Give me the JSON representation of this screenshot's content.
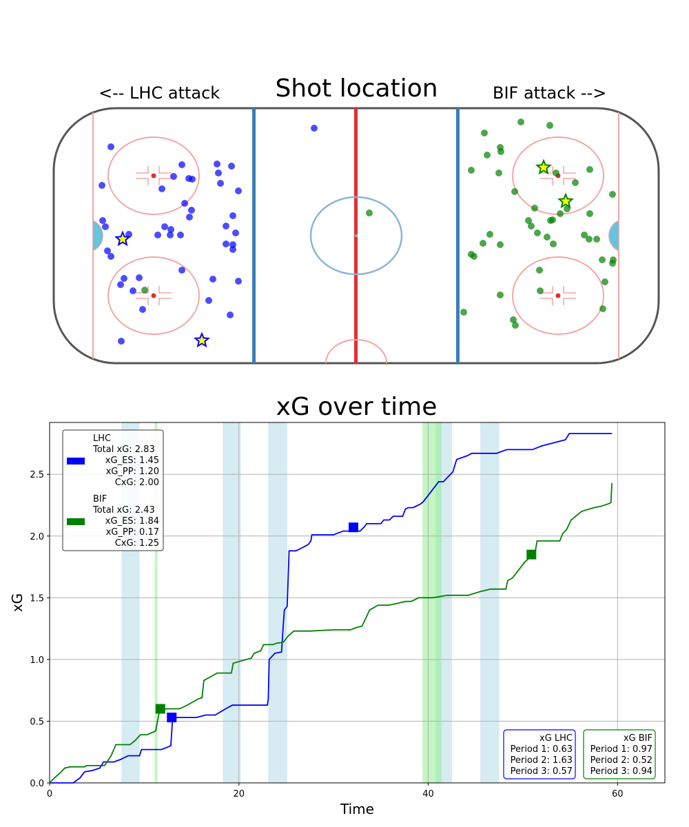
{
  "rink_panel": {
    "title": "Shot location",
    "left_label": "<-- LHC attack",
    "right_label": "BIF attack -->",
    "shots_lhc": [
      [
        161,
        213
      ],
      [
        148,
        269
      ],
      [
        264,
        239
      ],
      [
        252,
        256
      ],
      [
        274,
        259
      ],
      [
        279,
        260
      ],
      [
        235,
        274
      ],
      [
        315,
        238
      ],
      [
        336,
        241
      ],
      [
        317,
        251
      ],
      [
        320,
        266
      ],
      [
        346,
        277
      ],
      [
        268,
        295
      ],
      [
        278,
        305
      ],
      [
        275,
        315
      ],
      [
        338,
        313
      ],
      [
        328,
        328
      ],
      [
        149,
        320
      ],
      [
        153,
        329
      ],
      [
        239,
        329
      ],
      [
        248,
        333
      ],
      [
        229,
        341
      ],
      [
        247,
        341
      ],
      [
        262,
        341
      ],
      [
        342,
        338
      ],
      [
        328,
        354
      ],
      [
        338,
        355
      ],
      [
        338,
        362
      ],
      [
        156,
        364
      ],
      [
        161,
        372
      ],
      [
        264,
        392
      ],
      [
        180,
        404
      ],
      [
        202,
        403
      ],
      [
        175,
        413
      ],
      [
        309,
        405
      ],
      [
        346,
        408
      ],
      [
        193,
        422
      ],
      [
        303,
        436
      ],
      [
        207,
        449
      ],
      [
        334,
        457
      ],
      [
        176,
        495
      ],
      [
        456,
        186
      ],
      [
        187,
        340
      ]
    ],
    "shots_lhc_goals": [
      [
        178,
        347
      ],
      [
        293,
        494
      ]
    ],
    "shots_bif": [
      [
        756,
        177
      ],
      [
        798,
        182
      ],
      [
        703,
        193
      ],
      [
        726,
        214
      ],
      [
        727,
        220
      ],
      [
        707,
        225
      ],
      [
        684,
        247
      ],
      [
        724,
        251
      ],
      [
        856,
        246
      ],
      [
        807,
        251
      ],
      [
        835,
        265
      ],
      [
        747,
        278
      ],
      [
        889,
        282
      ],
      [
        776,
        302
      ],
      [
        823,
        303
      ],
      [
        802,
        319
      ],
      [
        856,
        310
      ],
      [
        813,
        310
      ],
      [
        767,
        320
      ],
      [
        771,
        328
      ],
      [
        799,
        320
      ],
      [
        780,
        338
      ],
      [
        711,
        340
      ],
      [
        794,
        344
      ],
      [
        848,
        341
      ],
      [
        701,
        353
      ],
      [
        726,
        355
      ],
      [
        803,
        354
      ],
      [
        855,
        347
      ],
      [
        866,
        347
      ],
      [
        684,
        369
      ],
      [
        688,
        372
      ],
      [
        874,
        377
      ],
      [
        890,
        377
      ],
      [
        889,
        382
      ],
      [
        783,
        392
      ],
      [
        878,
        409
      ],
      [
        784,
        422
      ],
      [
        726,
        428
      ],
      [
        875,
        448
      ],
      [
        673,
        453
      ],
      [
        745,
        464
      ],
      [
        748,
        472
      ],
      [
        210,
        421
      ],
      [
        536,
        309
      ]
    ],
    "shots_bif_goals": [
      [
        789,
        243
      ],
      [
        821,
        292
      ]
    ]
  },
  "chart_data": {
    "type": "line",
    "title": "xG over time",
    "xlabel": "Time",
    "ylabel": "xG",
    "xlim": [
      0,
      65
    ],
    "ylim": [
      0,
      2.92
    ],
    "x_ticks": [
      0,
      20,
      40,
      60
    ],
    "y_ticks": [
      0.0,
      0.5,
      1.0,
      1.5,
      2.0,
      2.5
    ],
    "grid": true,
    "series": [
      {
        "name": "LHC",
        "color": "#0000ff",
        "points": [
          [
            0,
            0
          ],
          [
            2.5,
            0
          ],
          [
            3.2,
            0.04
          ],
          [
            3.7,
            0.09
          ],
          [
            4.5,
            0.1
          ],
          [
            5.3,
            0.12
          ],
          [
            5.7,
            0.17
          ],
          [
            6.8,
            0.17
          ],
          [
            7.5,
            0.19
          ],
          [
            8.3,
            0.22
          ],
          [
            9.5,
            0.22
          ],
          [
            9.7,
            0.27
          ],
          [
            11.8,
            0.27
          ],
          [
            12.8,
            0.3
          ],
          [
            13,
            0.53
          ],
          [
            15.5,
            0.53
          ],
          [
            16.5,
            0.55
          ],
          [
            17.5,
            0.55
          ],
          [
            18.6,
            0.6
          ],
          [
            19.3,
            0.63
          ],
          [
            23,
            0.63
          ],
          [
            23.1,
            0.68
          ],
          [
            23.2,
            1.0
          ],
          [
            23.8,
            1.05
          ],
          [
            24.5,
            1.06
          ],
          [
            24.7,
            1.29
          ],
          [
            24.8,
            1.4
          ],
          [
            25.1,
            1.43
          ],
          [
            25.3,
            1.88
          ],
          [
            26,
            1.88
          ],
          [
            26.3,
            1.89
          ],
          [
            26.8,
            1.91
          ],
          [
            27.3,
            1.93
          ],
          [
            27.6,
            1.96
          ],
          [
            27.7,
            2.01
          ],
          [
            30,
            2.01
          ],
          [
            31,
            2.04
          ],
          [
            32.8,
            2.04
          ],
          [
            33.2,
            2.07
          ],
          [
            33.5,
            2.1
          ],
          [
            35,
            2.1
          ],
          [
            35.3,
            2.13
          ],
          [
            35.9,
            2.13
          ],
          [
            36.3,
            2.16
          ],
          [
            37.3,
            2.16
          ],
          [
            37.6,
            2.22
          ],
          [
            37.9,
            2.23
          ],
          [
            38.4,
            2.23
          ],
          [
            39.2,
            2.26
          ],
          [
            39.5,
            2.28
          ],
          [
            41.1,
            2.44
          ],
          [
            41.6,
            2.44
          ],
          [
            42.1,
            2.48
          ],
          [
            42.6,
            2.52
          ],
          [
            43,
            2.62
          ],
          [
            44.1,
            2.65
          ],
          [
            44.6,
            2.67
          ],
          [
            47.2,
            2.67
          ],
          [
            48.3,
            2.7
          ],
          [
            51,
            2.7
          ],
          [
            52,
            2.73
          ],
          [
            54.5,
            2.78
          ],
          [
            54.9,
            2.83
          ],
          [
            59.4,
            2.83
          ]
        ],
        "marker": [
          32.1,
          2.07
        ]
      },
      {
        "name": "BIF",
        "color": "#008000",
        "points": [
          [
            0,
            0
          ],
          [
            0.5,
            0.04
          ],
          [
            1.1,
            0.08
          ],
          [
            1.6,
            0.12
          ],
          [
            2.2,
            0.13
          ],
          [
            3.7,
            0.13
          ],
          [
            3.9,
            0.14
          ],
          [
            5.8,
            0.14
          ],
          [
            6.5,
            0.22
          ],
          [
            7,
            0.31
          ],
          [
            8.5,
            0.31
          ],
          [
            9,
            0.34
          ],
          [
            9.6,
            0.39
          ],
          [
            10.3,
            0.39
          ],
          [
            11.2,
            0.42
          ],
          [
            11.6,
            0.58
          ],
          [
            12.3,
            0.6
          ],
          [
            13.7,
            0.6
          ],
          [
            14.3,
            0.62
          ],
          [
            15.7,
            0.68
          ],
          [
            16.1,
            0.69
          ],
          [
            16.3,
            0.83
          ],
          [
            17,
            0.86
          ],
          [
            17.7,
            0.89
          ],
          [
            19.2,
            0.89
          ],
          [
            19.4,
            0.97
          ],
          [
            20.8,
            1.0
          ],
          [
            21.3,
            1.01
          ],
          [
            21.6,
            1.05
          ],
          [
            22.3,
            1.07
          ],
          [
            22.6,
            1.12
          ],
          [
            23.6,
            1.12
          ],
          [
            23.9,
            1.13
          ],
          [
            24.7,
            1.14
          ],
          [
            25.2,
            1.19
          ],
          [
            25.8,
            1.23
          ],
          [
            27.5,
            1.23
          ],
          [
            30,
            1.24
          ],
          [
            31.8,
            1.24
          ],
          [
            32.1,
            1.25
          ],
          [
            32.5,
            1.26
          ],
          [
            33,
            1.27
          ],
          [
            33.5,
            1.35
          ],
          [
            33.8,
            1.4
          ],
          [
            34.7,
            1.44
          ],
          [
            35.8,
            1.44
          ],
          [
            36.5,
            1.45
          ],
          [
            37.6,
            1.47
          ],
          [
            38.2,
            1.47
          ],
          [
            39,
            1.5
          ],
          [
            40.5,
            1.5
          ],
          [
            42,
            1.52
          ],
          [
            44.2,
            1.52
          ],
          [
            45.5,
            1.55
          ],
          [
            46.6,
            1.57
          ],
          [
            48.2,
            1.57
          ],
          [
            48.4,
            1.64
          ],
          [
            48.9,
            1.66
          ],
          [
            49.5,
            1.72
          ],
          [
            50.2,
            1.79
          ],
          [
            50.5,
            1.81
          ],
          [
            51.3,
            1.87
          ],
          [
            51.5,
            1.96
          ],
          [
            53.9,
            1.96
          ],
          [
            54.2,
            2.02
          ],
          [
            54.6,
            2.05
          ],
          [
            55.1,
            2.13
          ],
          [
            56.2,
            2.2
          ],
          [
            57.5,
            2.23
          ],
          [
            58.2,
            2.24
          ],
          [
            59,
            2.26
          ],
          [
            59.3,
            2.27
          ],
          [
            59.4,
            2.43
          ]
        ],
        "marker": [
          11.7,
          0.6
        ]
      }
    ],
    "markers": [
      {
        "team": "LHC",
        "x": 12.9,
        "y": 0.53
      },
      {
        "team": "BIF",
        "x": 50.9,
        "y": 1.85
      }
    ],
    "penalty_bands_blue": [
      [
        7.6,
        9.5
      ],
      [
        18.3,
        20.2
      ],
      [
        23.1,
        25.1
      ],
      [
        40.8,
        42.5
      ],
      [
        45.5,
        47.5
      ]
    ],
    "penalty_bands_green": [
      [
        11.1,
        11.4
      ],
      [
        39.4,
        41.4
      ]
    ],
    "legend": {
      "placement": "top-left",
      "entries": [
        {
          "team": "LHC",
          "color": "#0000ff",
          "lines": [
            "LHC",
            "Total xG: 2.83",
            "xG_ES: 1.45",
            "xG_PP: 1.20",
            "CxG: 2.00"
          ]
        },
        {
          "team": "BIF",
          "color": "#008000",
          "lines": [
            "BIF",
            "Total xG: 2.43",
            "xG_ES: 1.84",
            "xG_PP: 0.17",
            "CxG: 1.25"
          ]
        }
      ]
    },
    "period_boxes": [
      {
        "team": "LHC",
        "color": "#0000ff",
        "lines": [
          "xG LHC",
          "Period 1: 0.63",
          "Period 2: 1.63",
          "Period 3: 0.57"
        ]
      },
      {
        "team": "BIF",
        "color": "#008000",
        "lines": [
          "xG BIF",
          "Period 1: 0.97",
          "Period 2: 0.52",
          "Period 3: 0.94"
        ]
      }
    ]
  }
}
